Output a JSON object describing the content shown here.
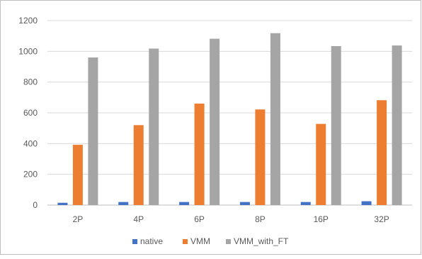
{
  "chart_data": {
    "type": "bar",
    "title": "",
    "xlabel": "",
    "ylabel": "",
    "categories": [
      "2P",
      "4P",
      "6P",
      "8P",
      "16P",
      "32P"
    ],
    "series": [
      {
        "name": "native",
        "color": "#4472C4",
        "values": [
          15,
          20,
          20,
          20,
          20,
          25
        ]
      },
      {
        "name": "VMM",
        "color": "#ED7D31",
        "values": [
          392,
          520,
          660,
          622,
          528,
          682
        ]
      },
      {
        "name": "VMM_with_FT",
        "color": "#A5A5A5",
        "values": [
          960,
          1018,
          1082,
          1118,
          1034,
          1038
        ]
      }
    ],
    "ylim": [
      0,
      1200
    ],
    "yticks": [
      0,
      200,
      400,
      600,
      800,
      1000,
      1200
    ],
    "grid": true,
    "legend_position": "bottom"
  }
}
